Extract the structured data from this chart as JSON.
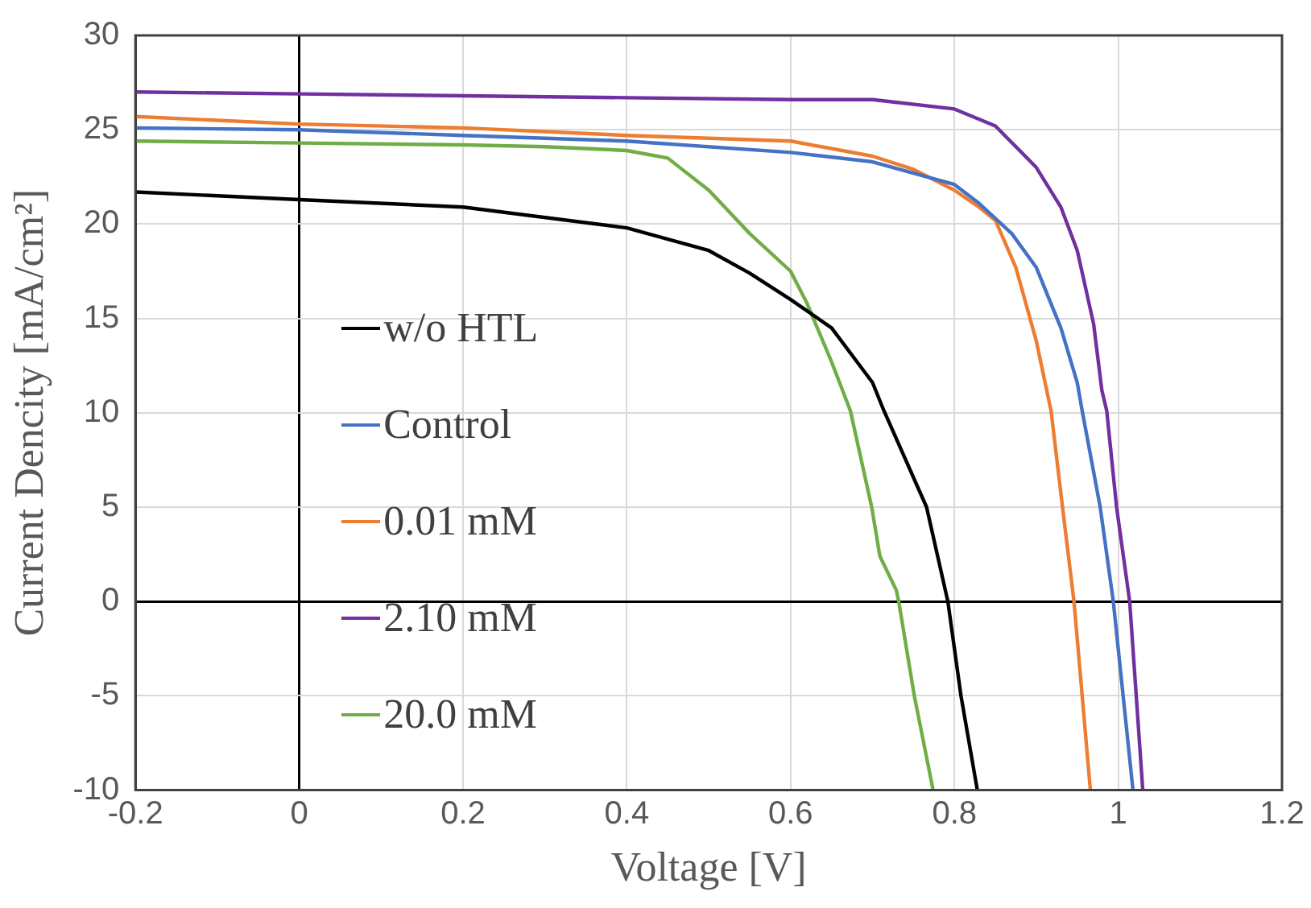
{
  "chart_data": {
    "type": "line",
    "xlabel": "Voltage [V]",
    "ylabel": "Current Dencity [mA/cm²]",
    "xlim": [
      -0.2,
      1.2
    ],
    "xticks": [
      -0.2,
      0,
      0.2,
      0.4,
      0.6,
      0.8,
      1,
      1.2
    ],
    "ylim": [
      -10,
      30
    ],
    "yticks": [
      -10,
      -5,
      0,
      5,
      10,
      15,
      20,
      25,
      30
    ],
    "grid": true,
    "legend": "left",
    "marker": "none",
    "line_style": "solid",
    "series": [
      {
        "name": "w/o HTL",
        "color": "#000000",
        "x": [
          -0.2,
          0,
          0.2,
          0.4,
          0.5,
          0.55,
          0.6,
          0.65,
          0.7,
          0.714,
          0.766,
          0.792,
          0.808,
          0.828
        ],
        "values": [
          21.7,
          21.3,
          20.9,
          19.8,
          18.6,
          17.4,
          16.0,
          14.5,
          11.6,
          10.1,
          5.0,
          0,
          -5,
          -10
        ]
      },
      {
        "name": "Control",
        "color": "#4472c4",
        "x": [
          -0.2,
          0,
          0.2,
          0.4,
          0.6,
          0.7,
          0.8,
          0.83,
          0.87,
          0.9,
          0.93,
          0.95,
          0.956,
          0.978,
          0.994,
          1.006,
          1.018
        ],
        "values": [
          25.1,
          25.0,
          24.7,
          24.4,
          23.8,
          23.3,
          22.1,
          21.1,
          19.5,
          17.7,
          14.5,
          11.6,
          10.1,
          5,
          0,
          -5,
          -10
        ]
      },
      {
        "name": "0.01 mM",
        "color": "#ed7d31",
        "x": [
          -0.2,
          0,
          0.2,
          0.4,
          0.6,
          0.7,
          0.75,
          0.8,
          0.83,
          0.85,
          0.875,
          0.9,
          0.918,
          0.932,
          0.946,
          0.956,
          0.966
        ],
        "values": [
          25.7,
          25.3,
          25.1,
          24.7,
          24.4,
          23.6,
          22.9,
          21.8,
          20.9,
          20.2,
          17.7,
          13.8,
          10.1,
          5,
          0,
          -5,
          -10
        ]
      },
      {
        "name": "2.10 mM",
        "color": "#7030a0",
        "x": [
          -0.2,
          0,
          0.2,
          0.4,
          0.6,
          0.7,
          0.8,
          0.85,
          0.9,
          0.93,
          0.95,
          0.97,
          0.98,
          0.986,
          0.998,
          1.014,
          1.022,
          1.03
        ],
        "values": [
          27.0,
          26.9,
          26.8,
          26.7,
          26.6,
          26.6,
          26.1,
          25.2,
          23.0,
          20.9,
          18.6,
          14.7,
          11.2,
          10.1,
          5,
          0,
          -5,
          -10
        ]
      },
      {
        "name": "20.0 mM",
        "color": "#70ad47",
        "x": [
          -0.2,
          0,
          0.2,
          0.3,
          0.4,
          0.45,
          0.5,
          0.55,
          0.6,
          0.62,
          0.65,
          0.673,
          0.699,
          0.709,
          0.729,
          0.732,
          0.751,
          0.774
        ],
        "values": [
          24.4,
          24.3,
          24.2,
          24.1,
          23.9,
          23.5,
          21.8,
          19.5,
          17.5,
          15.8,
          12.7,
          10.1,
          5,
          2.4,
          0.6,
          0,
          -5,
          -10
        ]
      }
    ]
  }
}
